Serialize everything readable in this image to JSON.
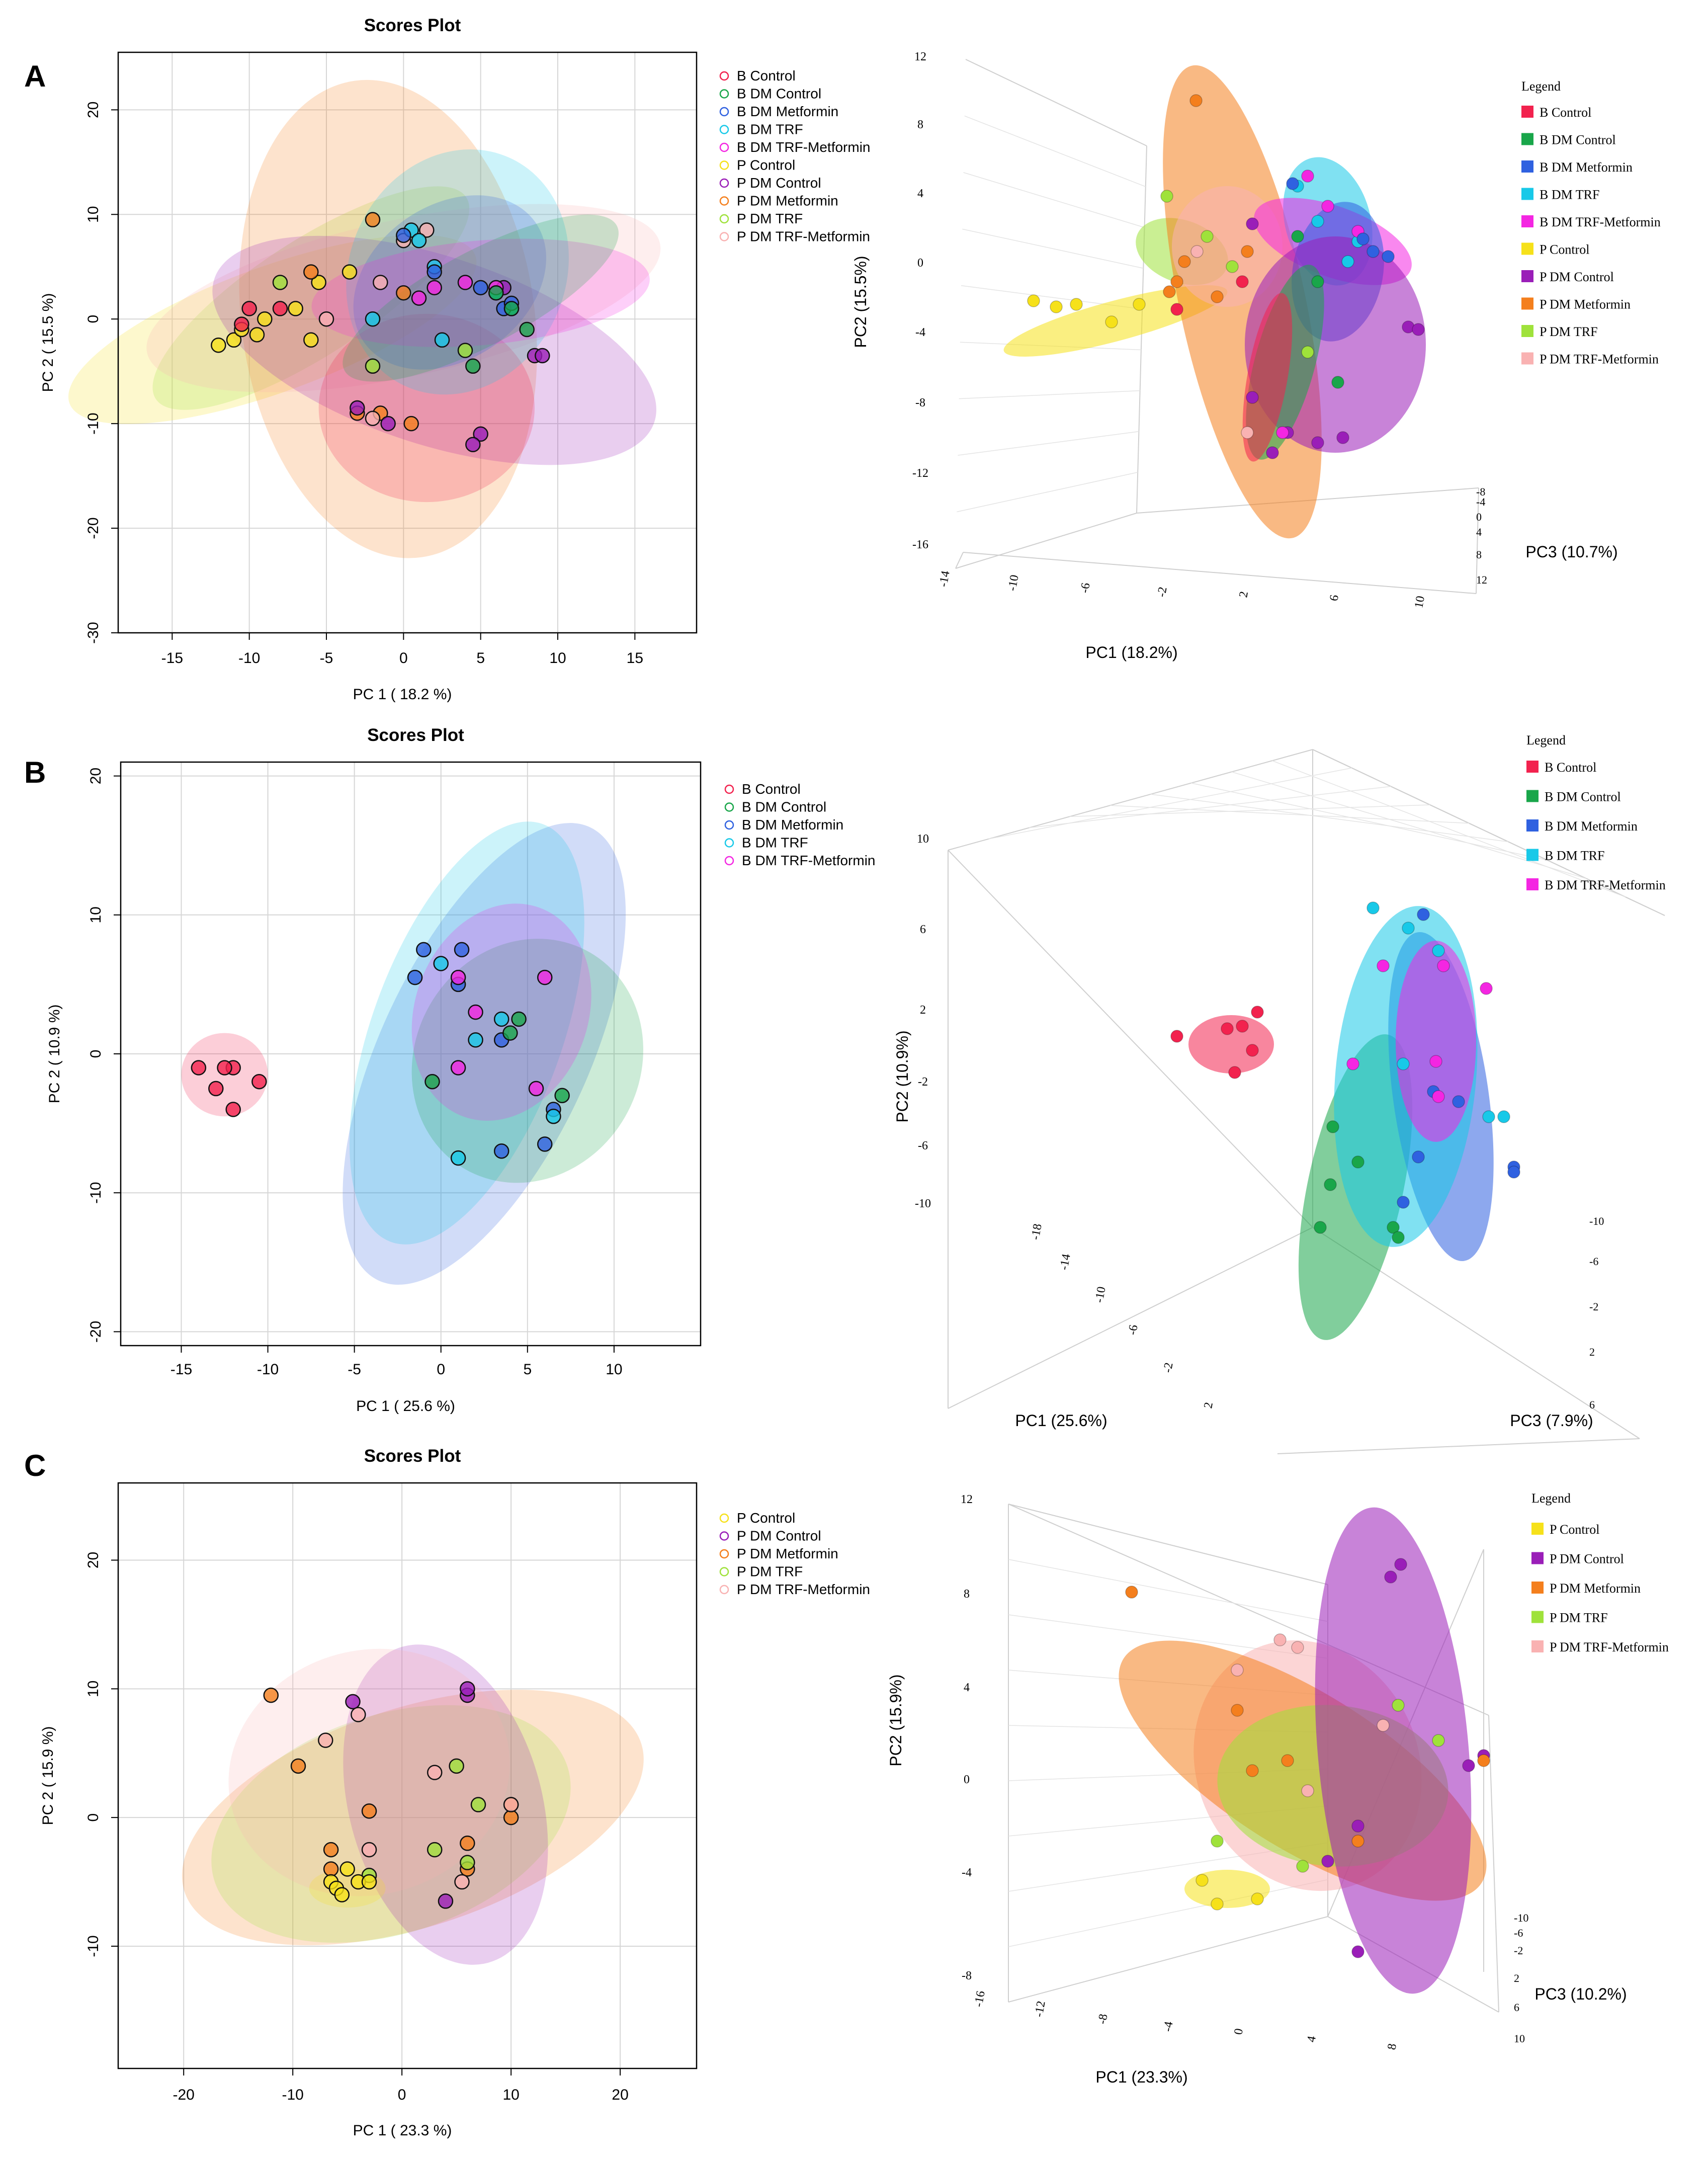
{
  "colors": {
    "B Control": "#f2224e",
    "B DM Control": "#19a64a",
    "B DM Metformin": "#2f61e0",
    "B DM TRF": "#18c9e8",
    "B DM TRF-Metformin": "#f426e2",
    "P Control": "#f6e11a",
    "P DM Control": "#9a1eb8",
    "P DM Metformin": "#f47f1d",
    "P DM TRF": "#9fe23b",
    "P DM TRF-Metformin": "#f9b2b2"
  },
  "panels": [
    {
      "letter": "A",
      "plot2d": {
        "title": "Scores Plot",
        "xlabel": "PC 1 ( 18.2 %)",
        "ylabel": "PC 2 ( 15.5 %)",
        "xlim": [
          -18.5,
          19
        ],
        "ylim": [
          -30,
          25.5
        ],
        "xticks": [
          -15,
          -10,
          -5,
          0,
          5,
          10,
          15
        ],
        "yticks": [
          20,
          10,
          0,
          -10,
          -20,
          -30
        ],
        "legend": [
          "B Control",
          "B DM Control",
          "B DM Metformin",
          "B DM TRF",
          "B DM TRF-Metformin",
          "P Control",
          "P DM Control",
          "P DM Metformin",
          "P DM TRF",
          "P DM TRF-Metformin"
        ],
        "groups": [
          {
            "name": "P Control",
            "ellipse": [
              -8.5,
              -1,
              14,
              6,
              -20
            ],
            "points": [
              [
                -11,
                -2
              ],
              [
                -12,
                -2.5
              ],
              [
                -9,
                0
              ],
              [
                -10.5,
                -1
              ],
              [
                -6,
                -2
              ],
              [
                -5.5,
                3.5
              ],
              [
                -7,
                1
              ],
              [
                -3.5,
                4.5
              ],
              [
                -9.5,
                -1.5
              ]
            ]
          },
          {
            "name": "P DM TRF",
            "ellipse": [
              -6,
              2,
              12,
              5.5,
              -33
            ],
            "points": [
              [
                -8,
                3.5
              ],
              [
                -2,
                -4.5
              ],
              [
                4,
                -3
              ]
            ]
          },
          {
            "name": "P DM Metformin",
            "ellipse": [
              -1,
              0,
              9.5,
              23,
              -8
            ],
            "points": [
              [
                -2,
                9.5
              ],
              [
                -6,
                4.5
              ],
              [
                0,
                2.5
              ],
              [
                -1.5,
                -9
              ],
              [
                -3,
                -9
              ],
              [
                0.5,
                -10
              ]
            ]
          },
          {
            "name": "P DM TRF-Metformin",
            "ellipse": [
              0,
              2,
              17,
              7.5,
              -12
            ],
            "points": [
              [
                -2,
                -9.5
              ],
              [
                1.5,
                8.5
              ],
              [
                -5,
                0
              ],
              [
                -1.5,
                3.5
              ],
              [
                0,
                7.5
              ]
            ]
          },
          {
            "name": "P DM Control",
            "ellipse": [
              2,
              -3,
              15,
              9,
              18
            ],
            "points": [
              [
                -3,
                -8.5
              ],
              [
                -1,
                -10
              ],
              [
                5,
                -11
              ],
              [
                4.5,
                -12
              ],
              [
                8.5,
                -3.5
              ],
              [
                9,
                -3.5
              ],
              [
                6.5,
                3
              ]
            ]
          },
          {
            "name": "B Control",
            "ellipse": [
              1.5,
              -8.5,
              7,
              9,
              0
            ],
            "points": [
              [
                -10,
                1
              ],
              [
                -8,
                1
              ],
              [
                -10.5,
                -0.5
              ]
            ]
          },
          {
            "name": "B DM TRF",
            "ellipse": [
              3.5,
              4.5,
              7,
              12,
              25
            ],
            "points": [
              [
                0.5,
                8.5
              ],
              [
                1,
                7.5
              ],
              [
                2,
                5
              ],
              [
                -2,
                0
              ],
              [
                6,
                2.5
              ],
              [
                7,
                1
              ],
              [
                2.5,
                -2
              ]
            ]
          },
          {
            "name": "B DM Metformin",
            "ellipse": [
              3,
              3.5,
              5,
              10,
              55
            ],
            "points": [
              [
                2,
                4.5
              ],
              [
                5,
                3
              ],
              [
                6.5,
                1
              ],
              [
                7,
                1.5
              ],
              [
                0,
                8
              ]
            ]
          },
          {
            "name": "B DM TRF-Metformin",
            "ellipse": [
              5,
              2.5,
              11,
              5,
              -5
            ],
            "points": [
              [
                4,
                3.5
              ],
              [
                6,
                3
              ],
              [
                1,
                2
              ],
              [
                2,
                3
              ]
            ]
          },
          {
            "name": "B DM Control",
            "ellipse": [
              5,
              2,
              10,
              4.5,
              -28
            ],
            "points": [
              [
                6,
                2.5
              ],
              [
                7,
                1
              ],
              [
                8,
                -1
              ],
              [
                4.5,
                -4.5
              ]
            ]
          }
        ]
      },
      "plot3d": {
        "xlabel": "PC1 (18.2%)",
        "ylabel": "PC2 (15.5%)",
        "zlabel": "PC3 (10.7%)",
        "legend_title": "Legend",
        "legend": [
          "B Control",
          "B DM Control",
          "B DM Metformin",
          "B DM TRF",
          "B DM TRF-Metformin",
          "P Control",
          "P DM Control",
          "P DM Metformin",
          "P DM TRF",
          "P DM TRF-Metformin"
        ],
        "yticks": [
          "12",
          "8",
          "4",
          "0",
          "-4",
          "-8",
          "-12",
          "-16"
        ],
        "xticks": [
          "-14",
          "-10",
          "-6",
          "-2",
          "2",
          "6",
          "10"
        ],
        "zticks": [
          "-8",
          "-4",
          "0",
          "4",
          "8",
          "12"
        ]
      }
    },
    {
      "letter": "B",
      "plot2d": {
        "title": "Scores Plot",
        "xlabel": "PC 1 ( 25.6 %)",
        "ylabel": "PC 2 ( 10.9 %)",
        "xlim": [
          -18.5,
          15
        ],
        "ylim": [
          -21,
          21
        ],
        "xticks": [
          -15,
          -10,
          -5,
          0,
          5,
          10
        ],
        "yticks": [
          20,
          10,
          0,
          -10,
          -20
        ],
        "legend": [
          "B Control",
          "B DM Control",
          "B DM Metformin",
          "B DM TRF",
          "B DM TRF-Metformin"
        ],
        "groups": [
          {
            "name": "B DM Metformin",
            "ellipse": [
              2.5,
              0,
              6,
              18,
              25
            ],
            "points": [
              [
                -1.5,
                5.5
              ],
              [
                1,
                5
              ],
              [
                1.2,
                7.5
              ],
              [
                3.5,
                -7
              ],
              [
                6,
                -6.5
              ],
              [
                6.5,
                -4
              ],
              [
                -1,
                7.5
              ],
              [
                3.5,
                1
              ]
            ]
          },
          {
            "name": "B DM TRF",
            "ellipse": [
              1.5,
              1.5,
              5.5,
              16,
              20
            ],
            "points": [
              [
                0,
                6.5
              ],
              [
                1,
                -7.5
              ],
              [
                3.5,
                2.5
              ],
              [
                6.5,
                -4.5
              ],
              [
                2,
                1
              ]
            ]
          },
          {
            "name": "B DM Control",
            "ellipse": [
              5,
              -0.5,
              6.5,
              9,
              30
            ],
            "points": [
              [
                -0.5,
                -2
              ],
              [
                4.5,
                2.5
              ],
              [
                4,
                1.5
              ],
              [
                7,
                -3
              ]
            ]
          },
          {
            "name": "B DM TRF-Metformin",
            "ellipse": [
              3.5,
              3,
              5,
              8,
              20
            ],
            "points": [
              [
                1,
                5.5
              ],
              [
                2,
                3
              ],
              [
                1,
                -1
              ],
              [
                6,
                5.5
              ],
              [
                5.5,
                -2.5
              ]
            ]
          },
          {
            "name": "B Control",
            "ellipse": [
              -12.5,
              -1.5,
              2.5,
              3,
              0
            ],
            "points": [
              [
                -14,
                -1
              ],
              [
                -13,
                -2.5
              ],
              [
                -12,
                -1
              ],
              [
                -12.5,
                -1
              ],
              [
                -10.5,
                -2
              ],
              [
                -12,
                -4
              ]
            ]
          }
        ]
      },
      "plot3d": {
        "xlabel": "PC1 (25.6%)",
        "ylabel": "PC2 (10.9%)",
        "zlabel": "PC3 (7.9%)",
        "legend_title": "Legend",
        "legend": [
          "B Control",
          "B DM Control",
          "B DM Metformin",
          "B DM TRF",
          "B DM TRF-Metformin"
        ],
        "yticks": [
          "10",
          "6",
          "2",
          "-2",
          "-6",
          "-10"
        ],
        "xticks": [
          "-18",
          "-14",
          "-10",
          "-6",
          "-2",
          "2"
        ],
        "zticks": [
          "-10",
          "-6",
          "-2",
          "2",
          "6"
        ]
      }
    },
    {
      "letter": "C",
      "plot2d": {
        "title": "Scores Plot",
        "xlabel": "PC 1 ( 23.3 %)",
        "ylabel": "PC 2 ( 15.9 %)",
        "xlim": [
          -26,
          27
        ],
        "ylim": [
          -19.5,
          26
        ],
        "xticks": [
          -20,
          -10,
          0,
          10,
          20
        ],
        "yticks": [
          20,
          10,
          0,
          -10
        ],
        "legend": [
          "P Control",
          "P DM Control",
          "P DM Metformin",
          "P DM TRF",
          "P DM TRF-Metformin"
        ],
        "groups": [
          {
            "name": "P DM Metformin",
            "ellipse": [
              1,
              0,
              22,
              8.5,
              -18
            ],
            "points": [
              [
                -12,
                9.5
              ],
              [
                -9.5,
                4
              ],
              [
                -6.5,
                -2.5
              ],
              [
                -6.5,
                -4
              ],
              [
                -3,
                0.5
              ],
              [
                6,
                -4
              ],
              [
                6,
                -2
              ],
              [
                10,
                1
              ],
              [
                10,
                0
              ]
            ]
          },
          {
            "name": "P DM TRF",
            "ellipse": [
              -1,
              -0.5,
              17,
              8.5,
              -18
            ],
            "points": [
              [
                3,
                -2.5
              ],
              [
                5,
                4
              ],
              [
                7,
                1
              ],
              [
                -3,
                -4.5
              ],
              [
                6,
                -3.5
              ]
            ]
          },
          {
            "name": "P DM Control",
            "ellipse": [
              4,
              1,
              15,
              7.5,
              75
            ],
            "points": [
              [
                -4.5,
                9
              ],
              [
                6,
                9.5
              ],
              [
                6,
                10
              ],
              [
                4,
                -6.5
              ]
            ]
          },
          {
            "name": "P DM TRF-Metformin",
            "ellipse": [
              -3,
              3.5,
              13,
              9.5,
              -15
            ],
            "points": [
              [
                -7,
                6
              ],
              [
                -4,
                8
              ],
              [
                3,
                3.5
              ],
              [
                -3,
                -2.5
              ],
              [
                5.5,
                -5
              ],
              [
                10,
                1
              ]
            ]
          },
          {
            "name": "P Control",
            "ellipse": [
              -5,
              -5.5,
              3.5,
              1.5,
              0
            ],
            "points": [
              [
                -6.5,
                -5
              ],
              [
                -6,
                -5.5
              ],
              [
                -5.5,
                -6
              ],
              [
                -5,
                -4
              ],
              [
                -4,
                -5
              ],
              [
                -3,
                -5
              ]
            ]
          }
        ]
      },
      "plot3d": {
        "xlabel": "PC1 (23.3%)",
        "ylabel": "PC2 (15.9%)",
        "zlabel": "PC3 (10.2%)",
        "legend_title": "Legend",
        "legend": [
          "P Control",
          "P DM Control",
          "P DM Metformin",
          "P DM TRF",
          "P DM TRF-Metformin"
        ],
        "yticks": [
          "12",
          "8",
          "4",
          "0",
          "-4",
          "-8"
        ],
        "xticks": [
          "-16",
          "-12",
          "-8",
          "-4",
          "0",
          "4",
          "8"
        ],
        "zticks": [
          "-10",
          "-6",
          "-2",
          "2",
          "6",
          "10"
        ]
      }
    }
  ]
}
